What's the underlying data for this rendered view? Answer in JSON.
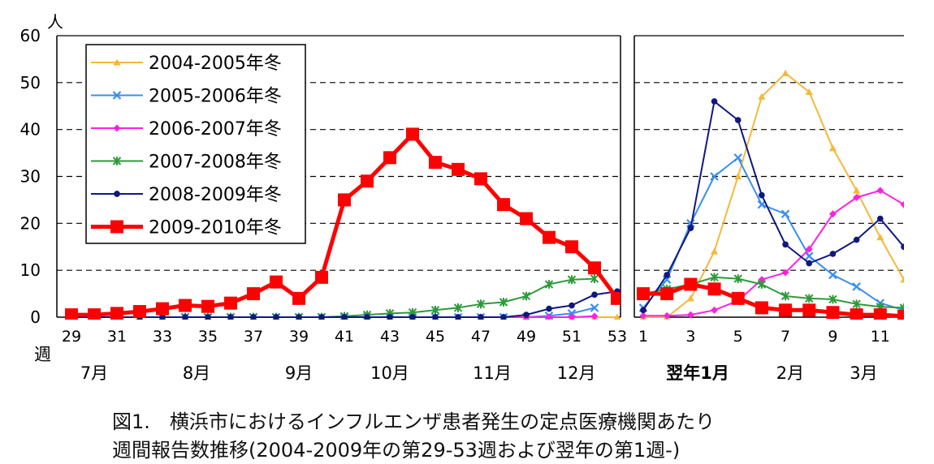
{
  "chart_data": {
    "type": "line",
    "ylabel": "人",
    "xlabel": "週",
    "ylim": [
      0,
      60
    ],
    "yticks": [
      "0",
      "10",
      "20",
      "30",
      "40",
      "50",
      "60"
    ],
    "grid": "dashed horizontal",
    "legend": "top-left",
    "panels": [
      {
        "name": "left",
        "x_range": [
          28.5,
          54
        ],
        "xtick_labels": [
          "29",
          "31",
          "33",
          "35",
          "37",
          "39",
          "41",
          "43",
          "45",
          "47",
          "49",
          "51",
          "53"
        ],
        "months": [
          {
            "label": "7月",
            "x": 30
          },
          {
            "label": "8月",
            "x": 34.5
          },
          {
            "label": "9月",
            "x": 39
          },
          {
            "label": "10月",
            "x": 43
          },
          {
            "label": "11月",
            "x": 47.5
          },
          {
            "label": "12月",
            "x": 51.2
          }
        ]
      },
      {
        "name": "right",
        "x_range": [
          0.5,
          12.2
        ],
        "xtick_labels": [
          "1",
          "3",
          "5",
          "7",
          "9",
          "11"
        ],
        "months": [
          {
            "label": "翌年1月",
            "x": 3.3,
            "color": "#0000a0"
          },
          {
            "label": "2月",
            "x": 7.2
          },
          {
            "label": "3月",
            "x": 10.3
          }
        ]
      }
    ],
    "series": [
      {
        "name": "2004-2005年冬",
        "color": "#f5b83a",
        "marker": "triangle",
        "left": [
          [
            29,
            0
          ],
          [
            30,
            0
          ],
          [
            31,
            0
          ],
          [
            32,
            0
          ],
          [
            33,
            0
          ],
          [
            34,
            0
          ],
          [
            35,
            0
          ],
          [
            36,
            0
          ],
          [
            37,
            0
          ],
          [
            38,
            0
          ],
          [
            39,
            0
          ],
          [
            40,
            0
          ],
          [
            41,
            0
          ],
          [
            42,
            0
          ],
          [
            43,
            0
          ],
          [
            44,
            0
          ],
          [
            45,
            0
          ],
          [
            46,
            0
          ],
          [
            47,
            0
          ],
          [
            48,
            0
          ],
          [
            49,
            0
          ],
          [
            50,
            0
          ],
          [
            51,
            0
          ],
          [
            52,
            0
          ],
          [
            53,
            0
          ]
        ],
        "right": [
          [
            1,
            0
          ],
          [
            2,
            0
          ],
          [
            3,
            4
          ],
          [
            4,
            14
          ],
          [
            5,
            30
          ],
          [
            6,
            47
          ],
          [
            7,
            52
          ],
          [
            8,
            48
          ],
          [
            9,
            36
          ],
          [
            10,
            27
          ],
          [
            11,
            17
          ],
          [
            12,
            8
          ],
          [
            12.2,
            6
          ]
        ]
      },
      {
        "name": "2005-2006年冬",
        "color": "#3a8ef0",
        "marker": "x",
        "left": [
          [
            29,
            0
          ],
          [
            30,
            0
          ],
          [
            31,
            0
          ],
          [
            32,
            0
          ],
          [
            33,
            0
          ],
          [
            34,
            0
          ],
          [
            35,
            0
          ],
          [
            36,
            0
          ],
          [
            37,
            0
          ],
          [
            38,
            0
          ],
          [
            39,
            0
          ],
          [
            40,
            0
          ],
          [
            41,
            0
          ],
          [
            42,
            0
          ],
          [
            43,
            0
          ],
          [
            44,
            0
          ],
          [
            45,
            0
          ],
          [
            46,
            0
          ],
          [
            47,
            0
          ],
          [
            48,
            0
          ],
          [
            49,
            0
          ],
          [
            50,
            0.3
          ],
          [
            51,
            0.8
          ],
          [
            52,
            2
          ]
        ],
        "right": [
          [
            1,
            2
          ],
          [
            2,
            8
          ],
          [
            3,
            20
          ],
          [
            4,
            30
          ],
          [
            5,
            34
          ],
          [
            6,
            24
          ],
          [
            7,
            22
          ],
          [
            8,
            13
          ],
          [
            9,
            9
          ],
          [
            10,
            6.5
          ],
          [
            11,
            3
          ],
          [
            12,
            1.5
          ]
        ]
      },
      {
        "name": "2006-2007年冬",
        "color": "#ff20e0",
        "marker": "diamond",
        "left": [
          [
            29,
            0
          ],
          [
            30,
            0
          ],
          [
            31,
            0
          ],
          [
            32,
            0
          ],
          [
            33,
            0
          ],
          [
            34,
            0
          ],
          [
            35,
            0
          ],
          [
            36,
            0
          ],
          [
            37,
            0
          ],
          [
            38,
            0
          ],
          [
            39,
            0
          ],
          [
            40,
            0
          ],
          [
            41,
            0
          ],
          [
            42,
            0
          ],
          [
            43,
            0
          ],
          [
            44,
            0
          ],
          [
            45,
            0
          ],
          [
            46,
            0
          ],
          [
            47,
            0
          ],
          [
            48,
            0
          ],
          [
            49,
            0
          ],
          [
            50,
            0
          ],
          [
            51,
            0
          ],
          [
            52,
            0.2
          ]
        ],
        "right": [
          [
            1,
            0.3
          ],
          [
            2,
            0.3
          ],
          [
            3,
            0.5
          ],
          [
            4,
            1.5
          ],
          [
            5,
            3.5
          ],
          [
            6,
            8
          ],
          [
            7,
            9.5
          ],
          [
            8,
            14.5
          ],
          [
            9,
            22
          ],
          [
            10,
            25.5
          ],
          [
            11,
            27
          ],
          [
            12,
            24
          ],
          [
            12.2,
            18
          ]
        ]
      },
      {
        "name": "2007-2008年冬",
        "color": "#2e9a3a",
        "marker": "asterisk",
        "left": [
          [
            29,
            0
          ],
          [
            30,
            0
          ],
          [
            31,
            0
          ],
          [
            32,
            0
          ],
          [
            33,
            0
          ],
          [
            34,
            0
          ],
          [
            35,
            0
          ],
          [
            36,
            0
          ],
          [
            37,
            0
          ],
          [
            38,
            0
          ],
          [
            39,
            0
          ],
          [
            40,
            0
          ],
          [
            41,
            0.2
          ],
          [
            42,
            0.5
          ],
          [
            43,
            0.8
          ],
          [
            44,
            1
          ],
          [
            45,
            1.5
          ],
          [
            46,
            2
          ],
          [
            47,
            2.8
          ],
          [
            48,
            3.2
          ],
          [
            49,
            4.5
          ],
          [
            50,
            7
          ],
          [
            51,
            8
          ],
          [
            52,
            8.2
          ]
        ],
        "right": [
          [
            1,
            5
          ],
          [
            2,
            6
          ],
          [
            3,
            7
          ],
          [
            4,
            8.5
          ],
          [
            5,
            8.2
          ],
          [
            6,
            7
          ],
          [
            7,
            4.5
          ],
          [
            8,
            4
          ],
          [
            9,
            3.8
          ],
          [
            10,
            2.8
          ],
          [
            11,
            2.2
          ],
          [
            12,
            2
          ]
        ]
      },
      {
        "name": "2008-2009年冬",
        "color": "#101880",
        "marker": "circle",
        "left": [
          [
            29,
            0
          ],
          [
            30,
            0
          ],
          [
            31,
            0
          ],
          [
            32,
            0
          ],
          [
            33,
            0
          ],
          [
            34,
            0
          ],
          [
            35,
            0
          ],
          [
            36,
            0
          ],
          [
            37,
            0
          ],
          [
            38,
            0
          ],
          [
            39,
            0
          ],
          [
            40,
            0
          ],
          [
            41,
            0
          ],
          [
            42,
            0
          ],
          [
            43,
            0
          ],
          [
            44,
            0
          ],
          [
            45,
            0
          ],
          [
            46,
            0
          ],
          [
            47,
            0
          ],
          [
            48,
            0
          ],
          [
            49,
            0.5
          ],
          [
            50,
            1.8
          ],
          [
            51,
            2.5
          ],
          [
            52,
            4.8
          ],
          [
            53,
            5.5
          ]
        ],
        "right": [
          [
            1,
            1.5
          ],
          [
            2,
            9
          ],
          [
            3,
            19
          ],
          [
            4,
            46
          ],
          [
            5,
            42
          ],
          [
            6,
            26
          ],
          [
            7,
            15.5
          ],
          [
            8,
            11.5
          ],
          [
            9,
            13.5
          ],
          [
            10,
            16.5
          ],
          [
            11,
            21
          ],
          [
            12,
            15
          ],
          [
            12.2,
            10
          ]
        ]
      },
      {
        "name": "2009-2010年冬",
        "color": "#ff0000",
        "marker": "square",
        "bold": true,
        "left": [
          [
            29,
            0.5
          ],
          [
            30,
            0.5
          ],
          [
            31,
            0.8
          ],
          [
            32,
            1.2
          ],
          [
            33,
            1.8
          ],
          [
            34,
            2.5
          ],
          [
            35,
            2.3
          ],
          [
            36,
            3
          ],
          [
            37,
            5
          ],
          [
            38,
            7.5
          ],
          [
            39,
            4
          ],
          [
            40,
            8.5
          ],
          [
            41,
            25
          ],
          [
            42,
            29
          ],
          [
            43,
            34
          ],
          [
            44,
            39
          ],
          [
            45,
            33
          ],
          [
            46,
            31.5
          ],
          [
            47,
            29.5
          ],
          [
            48,
            24
          ],
          [
            49,
            21
          ],
          [
            50,
            17
          ],
          [
            51,
            15
          ],
          [
            52,
            10.5
          ],
          [
            53,
            4
          ]
        ],
        "right": [
          [
            1,
            5
          ],
          [
            2,
            5
          ],
          [
            3,
            7
          ],
          [
            4,
            6
          ],
          [
            5,
            4
          ],
          [
            6,
            2
          ],
          [
            7,
            1.5
          ],
          [
            8,
            1.5
          ],
          [
            9,
            1
          ],
          [
            10,
            0.5
          ],
          [
            11,
            0.5
          ],
          [
            12,
            0.2
          ]
        ]
      }
    ]
  },
  "caption": {
    "line1": "図1.　横浜市におけるインフルエンザ患者発生の定点医療機関あたり",
    "line2": "週間報告数推移(2004-2009年の第29-53週および翌年の第1週-)"
  }
}
